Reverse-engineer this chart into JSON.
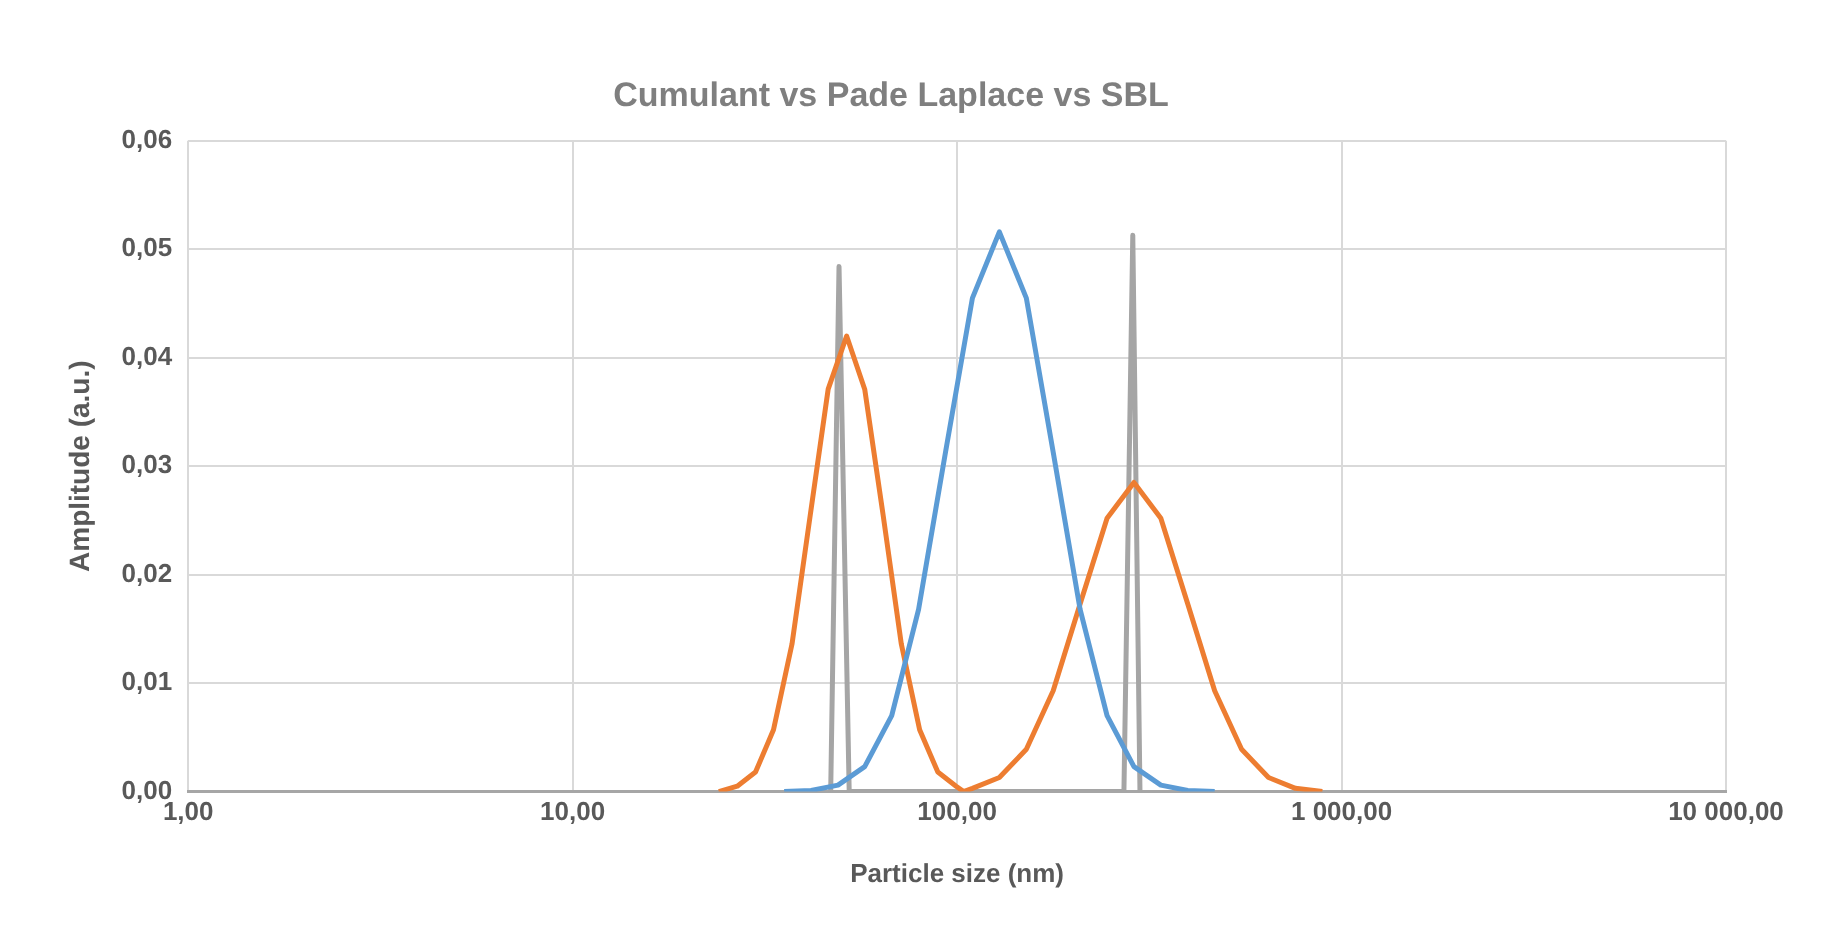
{
  "chart_data": {
    "type": "line",
    "title": "Cumulant vs Pade Laplace vs SBL",
    "xlabel": "Particle size (nm)",
    "ylabel": "Amplitude (a.u.)",
    "log": "x",
    "grid": true,
    "xlim": [
      1,
      10000
    ],
    "xticks": [
      {
        "value": 1,
        "label": "1,00"
      },
      {
        "value": 10,
        "label": "10,00"
      },
      {
        "value": 100,
        "label": "100,00"
      },
      {
        "value": 1000,
        "label": "1 000,00"
      },
      {
        "value": 10000,
        "label": "10 000,00"
      }
    ],
    "ylim": [
      0,
      0.06
    ],
    "yticks": [
      {
        "value": 0,
        "label": "0,00"
      },
      {
        "value": 0.01,
        "label": "0,01"
      },
      {
        "value": 0.02,
        "label": "0,02"
      },
      {
        "value": 0.03,
        "label": "0,03"
      },
      {
        "value": 0.04,
        "label": "0,04"
      },
      {
        "value": 0.05,
        "label": "0,05"
      },
      {
        "value": 0.06,
        "label": "0,06"
      }
    ],
    "series": [
      {
        "color": "#5b9bd5",
        "x": [
          35.5,
          41.7,
          49.0,
          57.5,
          67.6,
          79.4,
          93.3,
          109.6,
          128.8,
          151.4,
          177.8,
          208.9,
          245.5,
          288.4,
          338.8,
          398.1,
          467.7
        ],
        "values": [
          0,
          0.0001,
          0.0006,
          0.0023,
          0.007,
          0.0168,
          0.0313,
          0.0455,
          0.0516,
          0.0455,
          0.0313,
          0.0168,
          0.007,
          0.0023,
          0.0006,
          0.0001,
          0
        ]
      },
      {
        "color": "#ed7d31",
        "x": [
          24.0,
          26.8,
          29.9,
          33.3,
          37.2,
          41.5,
          46.2,
          51.6,
          57.5,
          64.2,
          71.6,
          79.9,
          89.1,
          99.4,
          104.0,
          109.6,
          128.8,
          151.4,
          177.8,
          208.9,
          245.5,
          288.4,
          338.8,
          398.1,
          467.7,
          549.5,
          645.7,
          758.6,
          891.3
        ],
        "values": [
          0,
          0.0005,
          0.0018,
          0.0057,
          0.0136,
          0.0255,
          0.0371,
          0.042,
          0.0371,
          0.0255,
          0.0136,
          0.0057,
          0.0018,
          0.0005,
          0,
          0.0003,
          0.0013,
          0.0039,
          0.0093,
          0.0173,
          0.0252,
          0.0285,
          0.0252,
          0.0173,
          0.0093,
          0.0039,
          0.0013,
          0.0003,
          0
        ]
      },
      {
        "color": "#a5a5a5",
        "x": [
          46.9,
          49.3,
          52.4,
          271.6,
          286.4,
          299.0
        ],
        "values": [
          0,
          0.0484,
          0,
          0,
          0.0513,
          0
        ]
      }
    ]
  }
}
